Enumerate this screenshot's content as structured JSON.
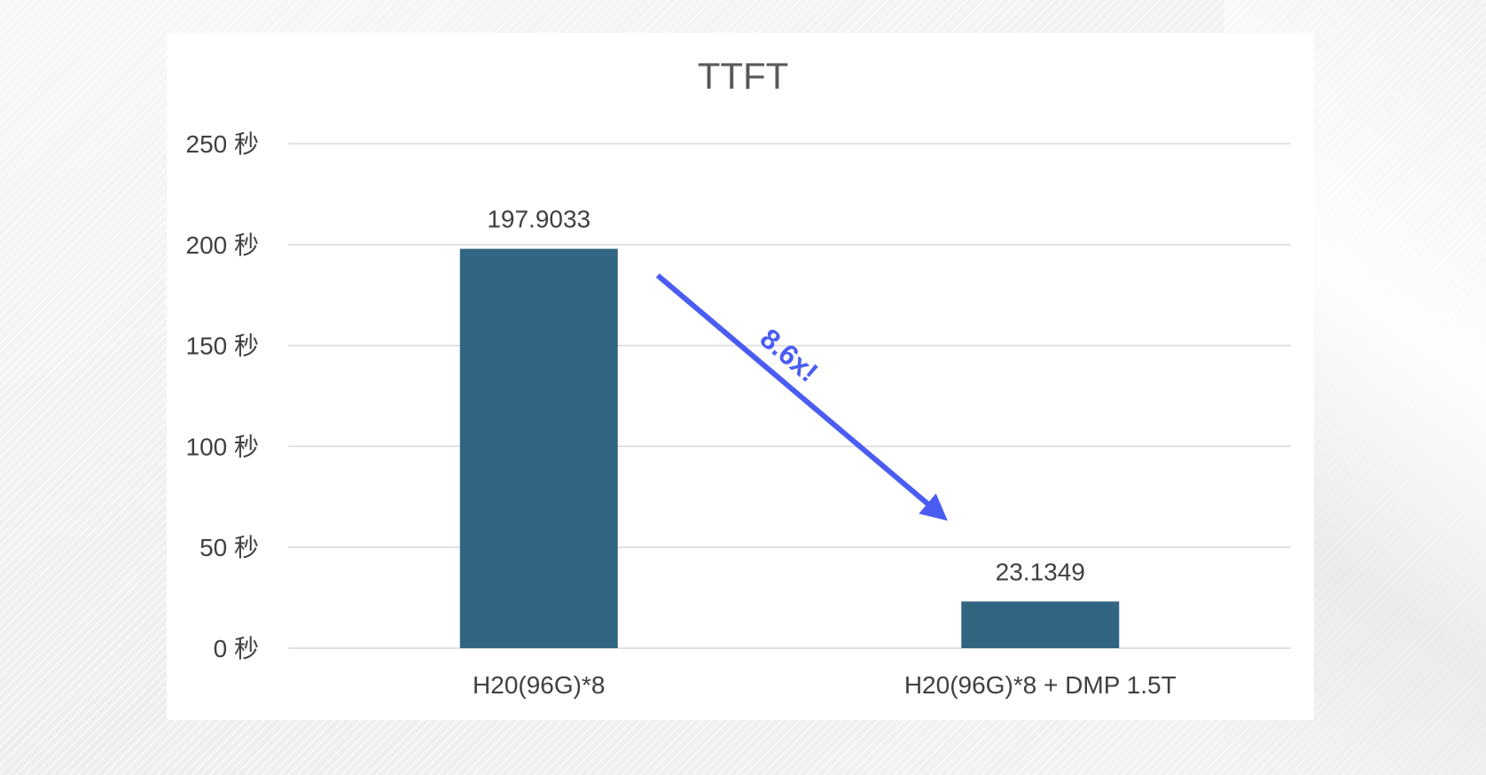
{
  "chart_data": {
    "type": "bar",
    "title": "TTFT",
    "categories": [
      "H20(96G)*8",
      "H20(96G)*8 + DMP 1.5T"
    ],
    "values": [
      197.9033,
      23.1349
    ],
    "value_labels": [
      "197.9033",
      "23.1349"
    ],
    "xlabel": "",
    "ylabel": "",
    "ylim": [
      0,
      250
    ],
    "yticks": [
      0,
      50,
      100,
      150,
      200,
      250
    ],
    "ytick_labels": [
      "0 秒",
      "50 秒",
      "100 秒",
      "150 秒",
      "200 秒",
      "250 秒"
    ],
    "grid": true,
    "legend": "none",
    "annotation": {
      "text": "8.6x!",
      "kind": "arrow",
      "from_category": 0,
      "to_category": 1
    },
    "colors": {
      "bar": "#326582",
      "arrow": "#4a5cf2",
      "grid": "#d9d9d9",
      "text": "#404040",
      "title": "#595959"
    }
  }
}
